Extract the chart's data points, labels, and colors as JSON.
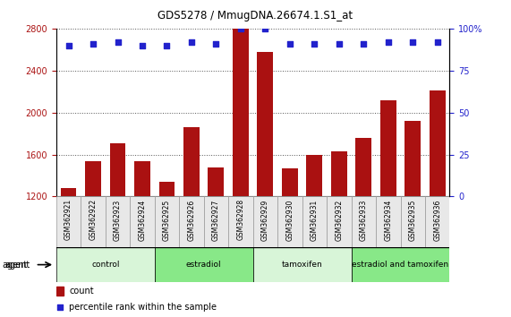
{
  "title": "GDS5278 / MmugDNA.26674.1.S1_at",
  "samples": [
    "GSM362921",
    "GSM362922",
    "GSM362923",
    "GSM362924",
    "GSM362925",
    "GSM362926",
    "GSM362927",
    "GSM362928",
    "GSM362929",
    "GSM362930",
    "GSM362931",
    "GSM362932",
    "GSM362933",
    "GSM362934",
    "GSM362935",
    "GSM362936"
  ],
  "counts": [
    1280,
    1540,
    1710,
    1540,
    1340,
    1860,
    1480,
    2800,
    2580,
    1470,
    1600,
    1630,
    1760,
    2120,
    1920,
    2210
  ],
  "percentiles": [
    90,
    91,
    92,
    90,
    90,
    92,
    91,
    100,
    100,
    91,
    91,
    91,
    91,
    92,
    92,
    92
  ],
  "ylim_left": [
    1200,
    2800
  ],
  "ylim_right": [
    0,
    100
  ],
  "yticks_left": [
    1200,
    1600,
    2000,
    2400,
    2800
  ],
  "yticks_right_vals": [
    0,
    25,
    50,
    75,
    100
  ],
  "yticks_right_labels": [
    "0",
    "25",
    "50",
    "75",
    "100%"
  ],
  "bar_color": "#aa1111",
  "dot_color": "#2222cc",
  "plot_bg_color": "#e8e8e8",
  "white_bg": "#ffffff",
  "groups": [
    {
      "label": "control",
      "start": 0,
      "end": 4,
      "color": "#d8f5d8"
    },
    {
      "label": "estradiol",
      "start": 4,
      "end": 8,
      "color": "#88e888"
    },
    {
      "label": "tamoxifen",
      "start": 8,
      "end": 12,
      "color": "#d8f5d8"
    },
    {
      "label": "estradiol and tamoxifen",
      "start": 12,
      "end": 16,
      "color": "#88e888"
    }
  ],
  "legend_count_color": "#aa1111",
  "legend_dot_color": "#2222cc",
  "right_axis_color": "#2222cc",
  "left_axis_color": "#aa1111",
  "grid_linestyle": "dotted",
  "grid_color": "#555555"
}
